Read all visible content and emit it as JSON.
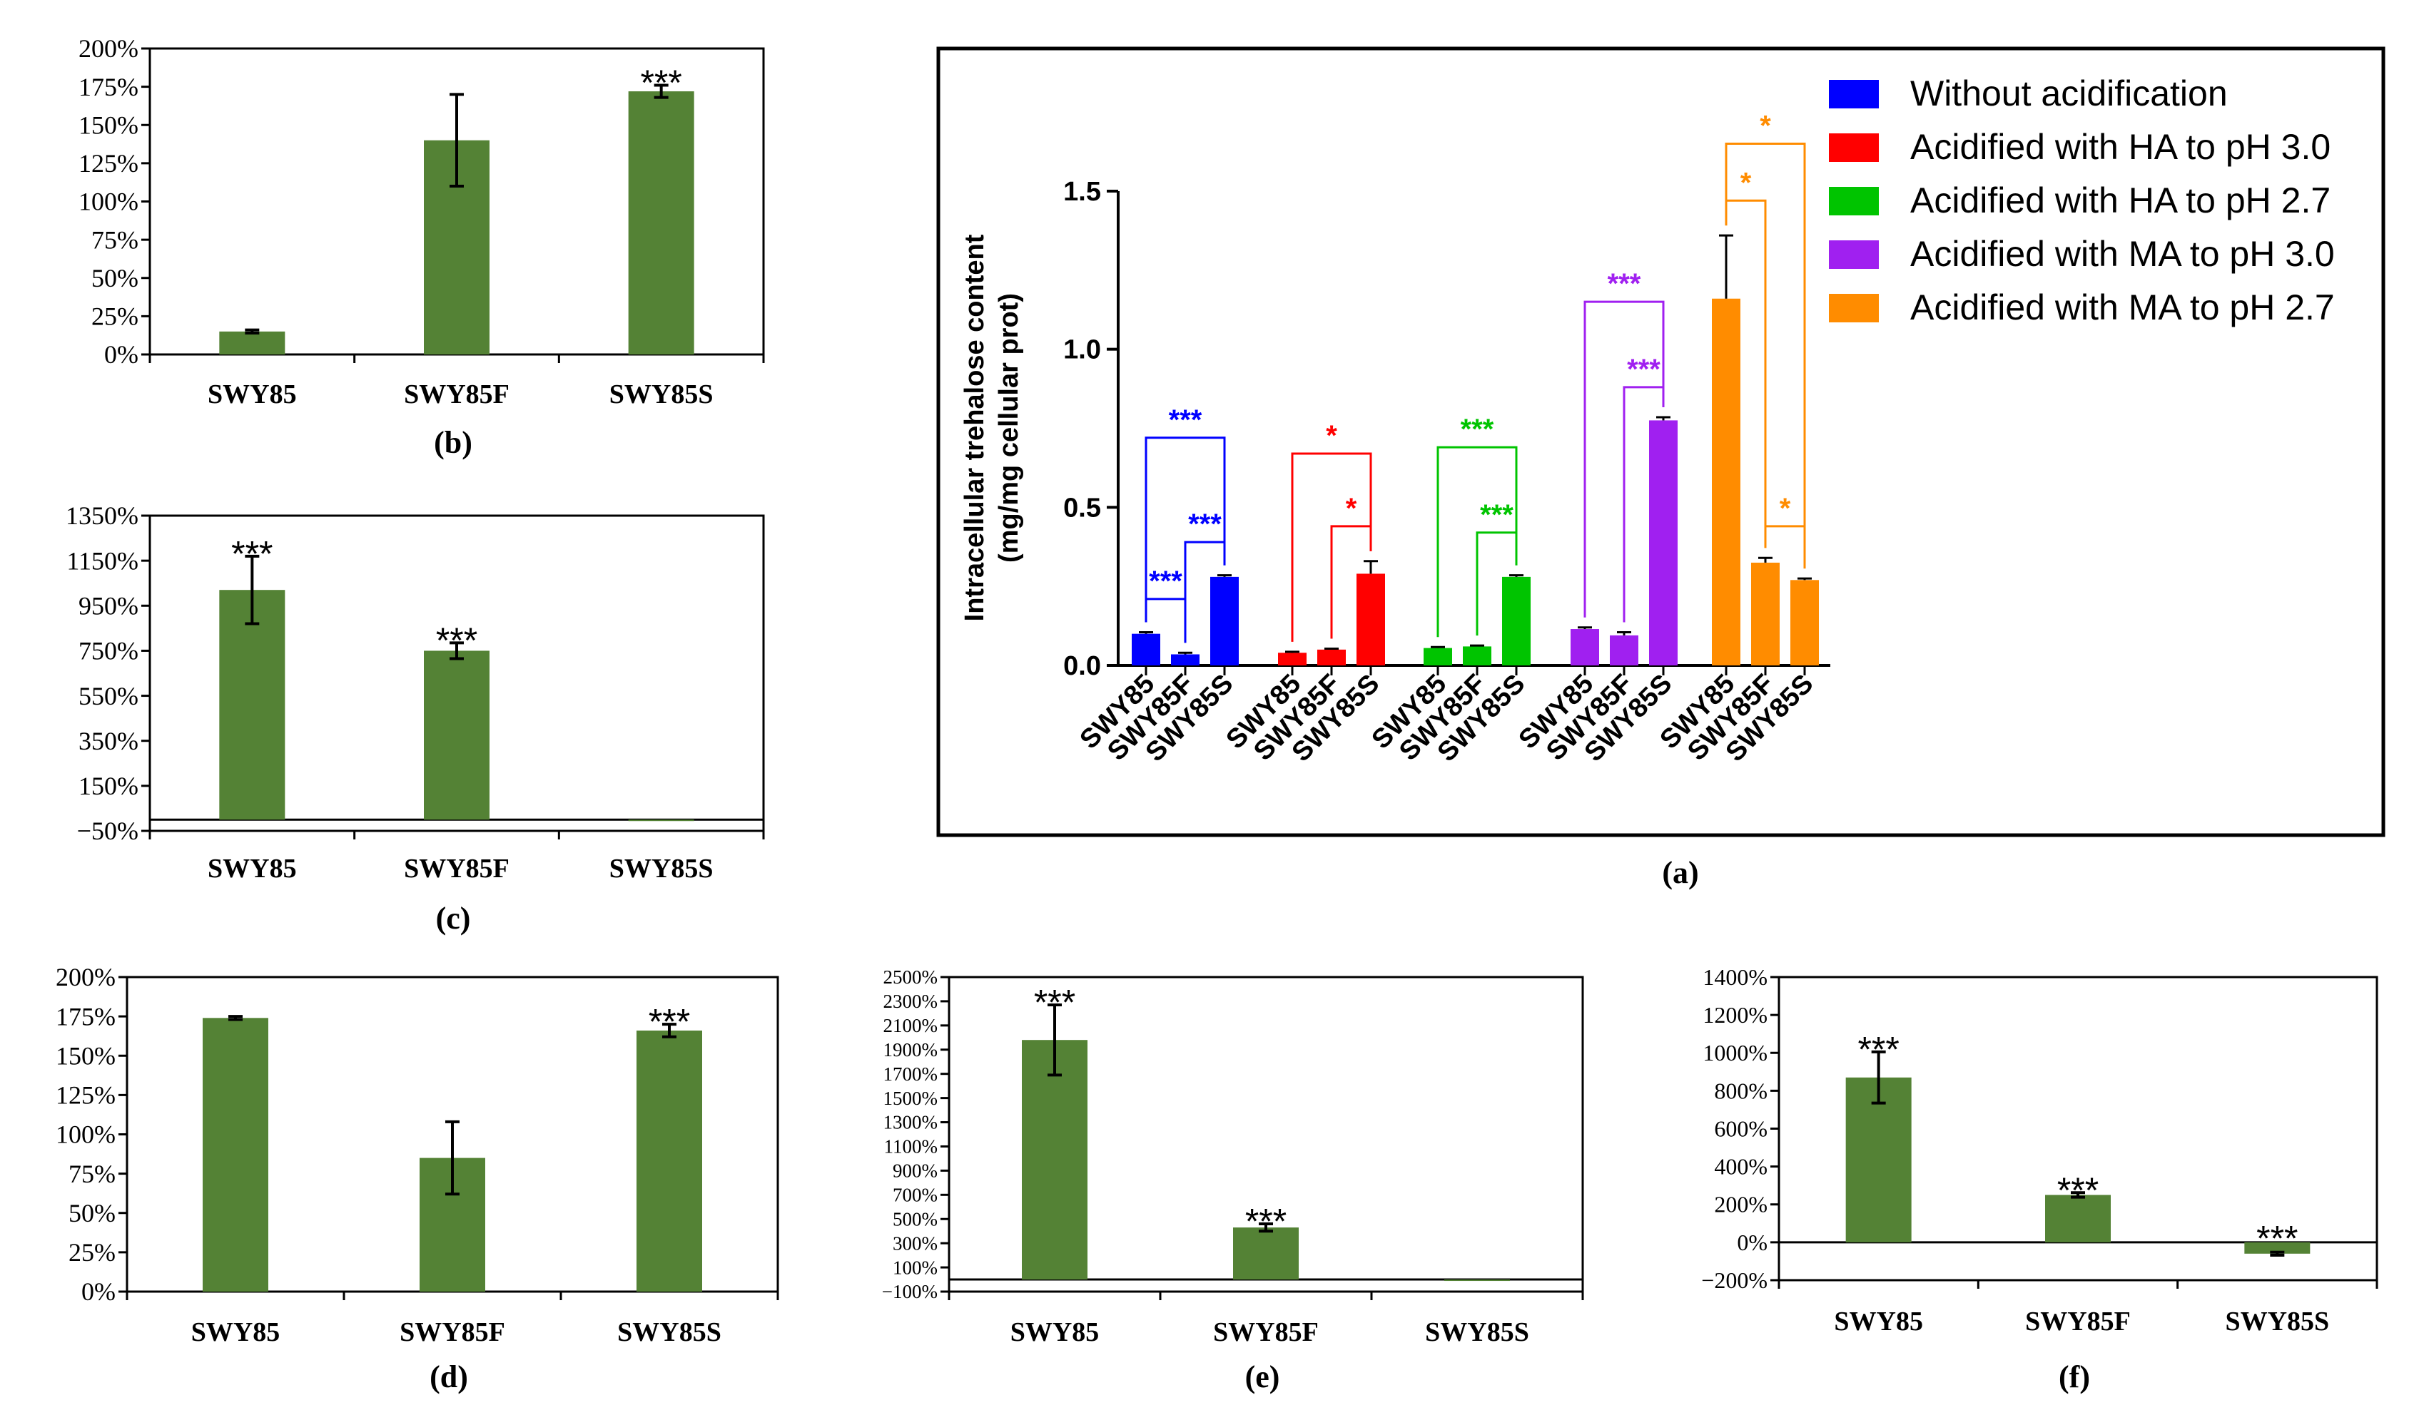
{
  "chart_data": [
    {
      "id": "a",
      "panel_label": "(a)",
      "type": "bar",
      "ylabel_line1": "Intracellular trehalose content",
      "ylabel_line2": "(mg/mg cellular prot)",
      "ylim": [
        0,
        1.5
      ],
      "yticks": [
        "0.0",
        "0.5",
        "1.0",
        "1.5"
      ],
      "ytick_values": [
        0,
        0.5,
        1.0,
        1.5
      ],
      "categories": [
        "SWY85",
        "SWY85F",
        "SWY85S"
      ],
      "series": [
        {
          "name": "Without acidification",
          "color": "#0000ff",
          "values": [
            0.1,
            0.035,
            0.28
          ],
          "errors": [
            0.005,
            0.005,
            0.005
          ]
        },
        {
          "name": "Acidified with HA to pH 3.0",
          "color": "#ff0000",
          "values": [
            0.04,
            0.05,
            0.29
          ],
          "errors": [
            0.003,
            0.003,
            0.04
          ]
        },
        {
          "name": "Acidified with HA to pH 2.7",
          "color": "#00c400",
          "values": [
            0.055,
            0.06,
            0.28
          ],
          "errors": [
            0.003,
            0.003,
            0.005
          ]
        },
        {
          "name": "Acidified with MA to pH 3.0",
          "color": "#a020f0",
          "values": [
            0.115,
            0.095,
            0.775
          ],
          "errors": [
            0.005,
            0.01,
            0.01
          ]
        },
        {
          "name": "Acidified with MA to pH 2.7",
          "color": "#ff8c00",
          "values": [
            1.16,
            0.325,
            0.27
          ],
          "errors": [
            0.2,
            0.015,
            0.005
          ]
        }
      ],
      "significance": [
        {
          "series": 0,
          "from": 0,
          "to": 2,
          "level": 0.72,
          "label": "***"
        },
        {
          "series": 0,
          "from": 1,
          "to": 2,
          "level": 0.39,
          "label": "***"
        },
        {
          "series": 0,
          "from": 0,
          "to": 1,
          "level": 0.21,
          "label": "***"
        },
        {
          "series": 1,
          "from": 0,
          "to": 2,
          "level": 0.67,
          "label": "*"
        },
        {
          "series": 1,
          "from": 1,
          "to": 2,
          "level": 0.44,
          "label": "*"
        },
        {
          "series": 2,
          "from": 0,
          "to": 2,
          "level": 0.69,
          "label": "***"
        },
        {
          "series": 2,
          "from": 1,
          "to": 2,
          "level": 0.42,
          "label": "***"
        },
        {
          "series": 3,
          "from": 0,
          "to": 2,
          "level": 1.15,
          "label": "***"
        },
        {
          "series": 3,
          "from": 1,
          "to": 2,
          "level": 0.88,
          "label": "***"
        },
        {
          "series": 4,
          "from": 0,
          "to": 2,
          "level": 1.65,
          "label": "*"
        },
        {
          "series": 4,
          "from": 0,
          "to": 1,
          "level": 1.47,
          "label": "*"
        },
        {
          "series": 4,
          "from": 1,
          "to": 2,
          "level": 0.44,
          "label": "*"
        }
      ]
    },
    {
      "id": "b",
      "panel_label": "(b)",
      "type": "bar",
      "categories": [
        "SWY85",
        "SWY85F",
        "SWY85S"
      ],
      "values": [
        15,
        140,
        172
      ],
      "errors": [
        1,
        30,
        4
      ],
      "significance": [
        "",
        "",
        "***"
      ],
      "ylim": [
        0,
        200
      ],
      "yticks": [
        "0%",
        "25%",
        "50%",
        "75%",
        "100%",
        "125%",
        "150%",
        "175%",
        "200%"
      ],
      "ytick_values": [
        0,
        25,
        50,
        75,
        100,
        125,
        150,
        175,
        200
      ],
      "color": "#548235"
    },
    {
      "id": "c",
      "panel_label": "(c)",
      "type": "bar",
      "categories": [
        "SWY85",
        "SWY85F",
        "SWY85S"
      ],
      "values": [
        1020,
        750,
        -5
      ],
      "errors": [
        150,
        35,
        0
      ],
      "significance": [
        "***",
        "***",
        ""
      ],
      "ylim": [
        -50,
        1350
      ],
      "yticks": [
        "−50%",
        "150%",
        "350%",
        "550%",
        "750%",
        "950%",
        "1150%",
        "1350%"
      ],
      "ytick_values": [
        -50,
        150,
        350,
        550,
        750,
        950,
        1150,
        1350
      ],
      "color": "#548235"
    },
    {
      "id": "d",
      "panel_label": "(d)",
      "type": "bar",
      "categories": [
        "SWY85",
        "SWY85F",
        "SWY85S"
      ],
      "values": [
        174,
        85,
        166
      ],
      "errors": [
        1,
        23,
        4
      ],
      "significance": [
        "",
        "",
        "***"
      ],
      "ylim": [
        0,
        200
      ],
      "yticks": [
        "0%",
        "25%",
        "50%",
        "75%",
        "100%",
        "125%",
        "150%",
        "175%",
        "200%"
      ],
      "ytick_values": [
        0,
        25,
        50,
        75,
        100,
        125,
        150,
        175,
        200
      ],
      "color": "#548235"
    },
    {
      "id": "e",
      "panel_label": "(e)",
      "type": "bar",
      "categories": [
        "SWY85",
        "SWY85F",
        "SWY85S"
      ],
      "values": [
        1980,
        430,
        -5
      ],
      "errors": [
        290,
        30,
        0
      ],
      "significance": [
        "***",
        "***",
        ""
      ],
      "ylim": [
        -100,
        2500
      ],
      "yticks": [
        "−100%",
        "100%",
        "300%",
        "500%",
        "700%",
        "900%",
        "1100%",
        "1300%",
        "1500%",
        "1700%",
        "1900%",
        "2100%",
        "2300%",
        "2500%"
      ],
      "ytick_values": [
        -100,
        100,
        300,
        500,
        700,
        900,
        1100,
        1300,
        1500,
        1700,
        1900,
        2100,
        2300,
        2500
      ],
      "color": "#548235"
    },
    {
      "id": "f",
      "panel_label": "(f)",
      "type": "bar",
      "categories": [
        "SWY85",
        "SWY85F",
        "SWY85S"
      ],
      "values": [
        870,
        250,
        -60
      ],
      "errors": [
        135,
        12,
        8
      ],
      "significance": [
        "***",
        "***",
        "***"
      ],
      "ylim": [
        -200,
        1400
      ],
      "yticks": [
        "−200%",
        "0%",
        "200%",
        "400%",
        "600%",
        "800%",
        "1000%",
        "1200%",
        "1400%"
      ],
      "ytick_values": [
        -200,
        0,
        200,
        400,
        600,
        800,
        1000,
        1200,
        1400
      ],
      "color": "#548235"
    }
  ]
}
